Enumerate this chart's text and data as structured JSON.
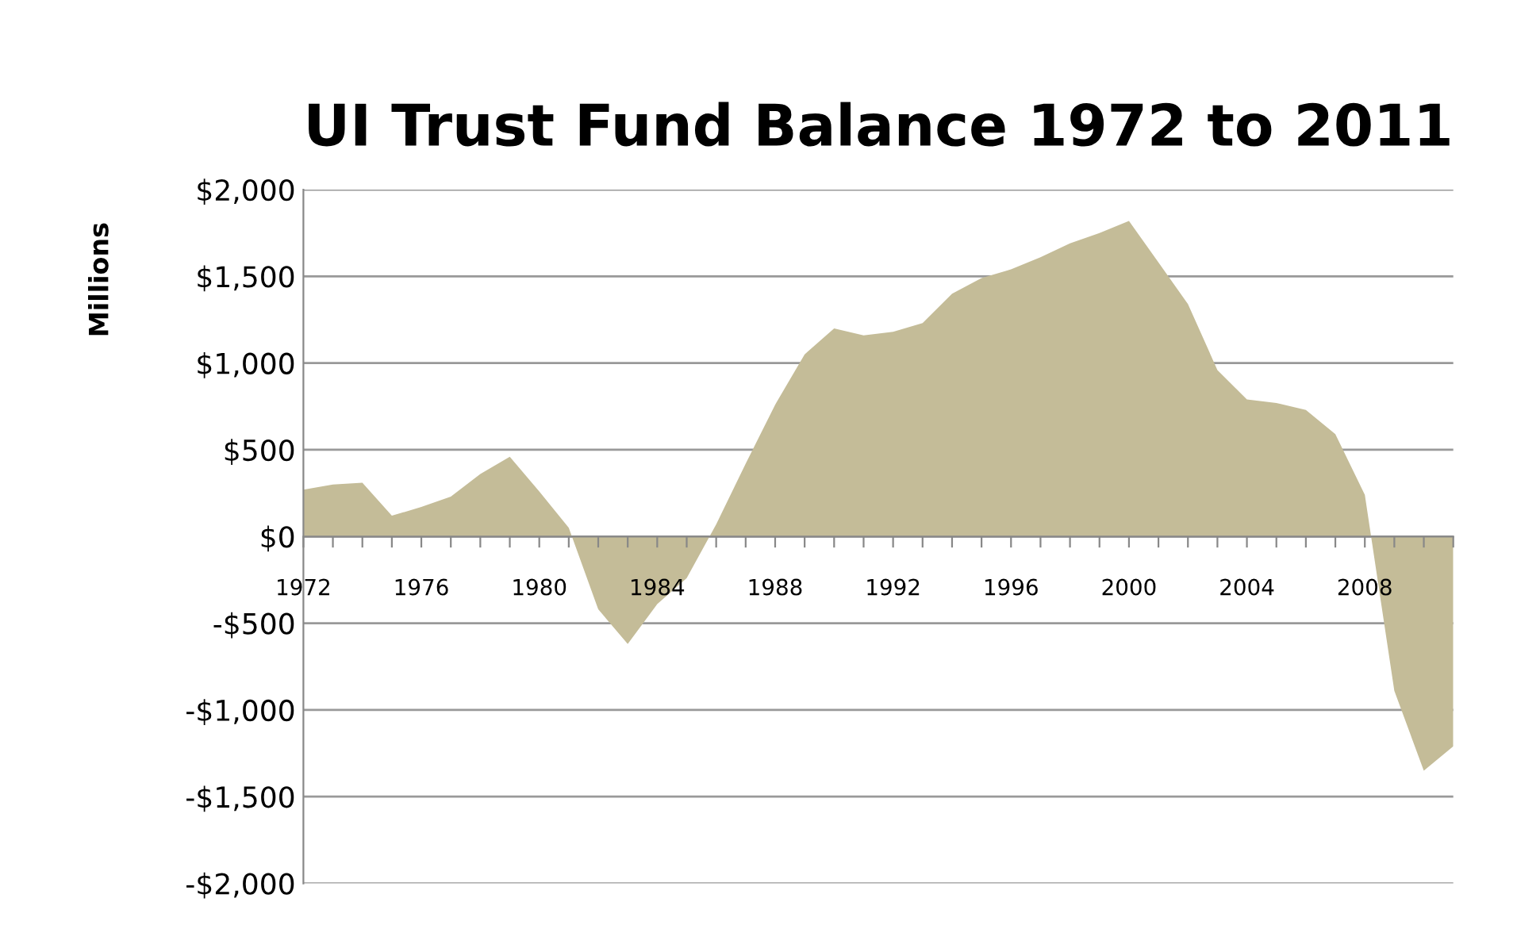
{
  "chart_data": {
    "type": "area",
    "title": "UI Trust Fund Balance 1972 to 2011",
    "ylabel": "Millions",
    "categories": [
      "1972",
      null,
      null,
      null,
      "1976",
      null,
      null,
      null,
      "1980",
      null,
      null,
      null,
      "1984",
      null,
      null,
      null,
      "1988",
      null,
      null,
      null,
      "1992",
      null,
      null,
      null,
      "1996",
      null,
      null,
      null,
      "2000",
      null,
      null,
      null,
      "2004",
      null,
      null,
      null,
      "2008",
      null,
      null,
      null
    ],
    "series": [
      {
        "color": "#c4bc98",
        "values": [
          270,
          300,
          310,
          120,
          170,
          230,
          360,
          460,
          260,
          50,
          -420,
          -620,
          -390,
          -240,
          70,
          420,
          760,
          1050,
          1200,
          1160,
          1180,
          1230,
          1400,
          1490,
          1540,
          1610,
          1690,
          1750,
          1820,
          1580,
          1340,
          960,
          790,
          770,
          730,
          590,
          240,
          -890,
          -1350,
          -1210
        ]
      }
    ],
    "ylim": [
      -2000,
      2000
    ],
    "yticks": [
      {
        "value": -2000,
        "label": "-$2,000"
      },
      {
        "value": -1500,
        "label": "-$1,500"
      },
      {
        "value": -1000,
        "label": "-$1,000"
      },
      {
        "value": -500,
        "label": "-$500"
      },
      {
        "value": 0,
        "label": "$0"
      },
      {
        "value": 500,
        "label": "$500"
      },
      {
        "value": 1000,
        "label": "$1,000"
      },
      {
        "value": 1500,
        "label": "$1,500"
      },
      {
        "value": 2000,
        "label": "$2,000"
      }
    ],
    "grid": "y",
    "legend": false
  }
}
